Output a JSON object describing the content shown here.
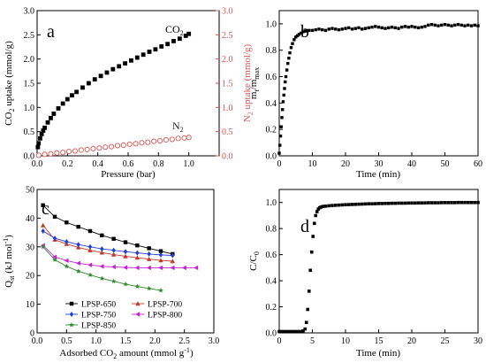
{
  "chart_data": [
    {
      "panel": "a",
      "type": "scatter",
      "xlabel": "Pressure (bar)",
      "ylabel": "CO2 uptake (mmol/g)",
      "y2label": "N2 uptake (mmol/g)",
      "xlim": [
        0,
        1.2
      ],
      "ylim": [
        0,
        3.0
      ],
      "y2lim": [
        0,
        3.0
      ],
      "x_ticks": [
        "0.0",
        "0.2",
        "0.4",
        "0.6",
        "0.8",
        "1.0"
      ],
      "y_ticks": [
        "0.0",
        "0.5",
        "1.0",
        "1.5",
        "2.0",
        "2.5",
        "3.0"
      ],
      "y2_ticks": [
        "0.0",
        "0.5",
        "1.0",
        "1.5",
        "2.0",
        "2.5",
        "3.0"
      ],
      "y2_color": "#d9534f",
      "series": [
        {
          "name": "CO2",
          "axis": "left",
          "color": "#000000",
          "marker": "square-filled",
          "x": [
            0.005,
            0.01,
            0.02,
            0.03,
            0.04,
            0.05,
            0.07,
            0.09,
            0.11,
            0.14,
            0.17,
            0.2,
            0.23,
            0.26,
            0.3,
            0.34,
            0.38,
            0.42,
            0.46,
            0.5,
            0.54,
            0.58,
            0.62,
            0.66,
            0.7,
            0.74,
            0.78,
            0.82,
            0.86,
            0.9,
            0.94,
            0.98,
            1.0
          ],
          "y": [
            0.18,
            0.26,
            0.36,
            0.45,
            0.52,
            0.58,
            0.69,
            0.78,
            0.87,
            0.98,
            1.08,
            1.17,
            1.25,
            1.32,
            1.41,
            1.5,
            1.58,
            1.65,
            1.72,
            1.79,
            1.85,
            1.91,
            1.97,
            2.03,
            2.09,
            2.15,
            2.2,
            2.26,
            2.31,
            2.37,
            2.42,
            2.48,
            2.52
          ]
        },
        {
          "name": "N2",
          "axis": "right",
          "color": "#d9534f",
          "marker": "circle-open",
          "x": [
            0.01,
            0.05,
            0.09,
            0.13,
            0.17,
            0.21,
            0.25,
            0.29,
            0.33,
            0.37,
            0.41,
            0.45,
            0.49,
            0.53,
            0.57,
            0.61,
            0.65,
            0.69,
            0.73,
            0.77,
            0.81,
            0.85,
            0.89,
            0.93,
            0.97,
            1.0
          ],
          "y": [
            0.01,
            0.03,
            0.04,
            0.06,
            0.07,
            0.09,
            0.1,
            0.12,
            0.13,
            0.15,
            0.16,
            0.18,
            0.19,
            0.21,
            0.22,
            0.24,
            0.25,
            0.27,
            0.28,
            0.3,
            0.31,
            0.33,
            0.34,
            0.36,
            0.37,
            0.38
          ]
        }
      ]
    },
    {
      "panel": "b",
      "type": "scatter",
      "xlabel": "Time (min)",
      "ylabel": "mt/mmax",
      "xlim": [
        0,
        60
      ],
      "ylim": [
        0,
        1.1
      ],
      "x_ticks": [
        "0",
        "10",
        "20",
        "30",
        "40",
        "50",
        "60"
      ],
      "y_ticks": [
        "0.0",
        "0.2",
        "0.4",
        "0.6",
        "0.8",
        "1.0"
      ],
      "series": [
        {
          "name": "",
          "color": "#000000",
          "marker": "square-filled",
          "x": [
            0.0,
            0.2,
            0.4,
            0.6,
            0.8,
            1.0,
            1.2,
            1.4,
            1.6,
            1.8,
            2.0,
            2.3,
            2.6,
            2.9,
            3.2,
            3.6,
            4.0,
            4.5,
            5.0,
            5.5,
            6.0,
            6.6,
            7.2,
            8.0,
            9.0,
            10.0,
            11.0,
            12.0,
            13.0,
            14.0,
            15.0,
            16.0,
            17.0,
            18.0,
            19.0,
            20.0,
            21.0,
            22.0,
            23.0,
            24.0,
            25.0,
            26.0,
            27.0,
            28.0,
            29.0,
            30.0,
            31.0,
            32.0,
            33.0,
            34.0,
            35.0,
            36.0,
            37.0,
            38.0,
            39.0,
            40.0,
            41.0,
            42.0,
            43.0,
            44.0,
            45.0,
            46.0,
            47.0,
            48.0,
            49.0,
            50.0,
            51.0,
            52.0,
            53.0,
            54.0,
            55.0,
            56.0,
            57.0,
            58.0,
            59.0,
            60.0
          ],
          "y": [
            0.02,
            0.08,
            0.15,
            0.22,
            0.29,
            0.35,
            0.41,
            0.46,
            0.51,
            0.56,
            0.6,
            0.65,
            0.7,
            0.74,
            0.78,
            0.82,
            0.85,
            0.88,
            0.9,
            0.91,
            0.92,
            0.93,
            0.94,
            0.945,
            0.95,
            0.95,
            0.955,
            0.96,
            0.955,
            0.95,
            0.96,
            0.965,
            0.96,
            0.955,
            0.96,
            0.965,
            0.97,
            0.96,
            0.965,
            0.97,
            0.96,
            0.965,
            0.97,
            0.975,
            0.98,
            0.975,
            0.97,
            0.965,
            0.97,
            0.975,
            0.97,
            0.965,
            0.975,
            0.98,
            0.975,
            0.98,
            0.975,
            0.97,
            0.975,
            0.98,
            0.99,
            0.995,
            0.99,
            0.985,
            0.99,
            0.995,
            0.99,
            0.985,
            0.99,
            0.995,
            0.99,
            0.985,
            0.99,
            0.985,
            0.99,
            0.985
          ]
        }
      ]
    },
    {
      "panel": "c",
      "type": "line",
      "xlabel": "Adsorbed CO2 amount (mmol g-1)",
      "ylabel": "Qst (kJ mol-1)",
      "xlim": [
        0,
        3.0
      ],
      "ylim": [
        0,
        50
      ],
      "x_ticks": [
        "0.0",
        "0.5",
        "1.0",
        "1.5",
        "2.0",
        "2.5",
        "3.0"
      ],
      "y_ticks": [
        "0",
        "10",
        "20",
        "30",
        "40",
        "50"
      ],
      "legend_position": "bottom-left",
      "series": [
        {
          "name": "LPSP-650",
          "color": "#000000",
          "marker": "square",
          "x": [
            0.1,
            0.3,
            0.5,
            0.7,
            0.9,
            1.1,
            1.3,
            1.5,
            1.7,
            1.9,
            2.1,
            2.3
          ],
          "y": [
            44.5,
            40.5,
            38.5,
            37.0,
            35.5,
            34.0,
            32.8,
            31.6,
            30.5,
            29.5,
            28.5,
            27.5
          ]
        },
        {
          "name": "LPSP-700",
          "color": "#c0392b",
          "marker": "triangle-up",
          "x": [
            0.1,
            0.3,
            0.5,
            0.7,
            0.9,
            1.1,
            1.3,
            1.5,
            1.7,
            1.9,
            2.1,
            2.3
          ],
          "y": [
            37.5,
            32.5,
            31.0,
            29.8,
            28.8,
            28.0,
            27.3,
            26.7,
            26.2,
            25.7,
            25.3,
            25.0
          ]
        },
        {
          "name": "LPSP-750",
          "color": "#1f3fd9",
          "marker": "diamond",
          "x": [
            0.1,
            0.3,
            0.5,
            0.7,
            0.9,
            1.1,
            1.3,
            1.5,
            1.7,
            1.9,
            2.1,
            2.3
          ],
          "y": [
            35.5,
            33.0,
            31.8,
            30.8,
            30.0,
            29.3,
            28.8,
            28.3,
            27.9,
            27.5,
            27.2,
            27.0
          ]
        },
        {
          "name": "LPSP-800",
          "color": "#c71fd6",
          "marker": "triangle-left",
          "x": [
            0.1,
            0.3,
            0.5,
            0.7,
            0.9,
            1.1,
            1.3,
            1.5,
            1.7,
            1.9,
            2.1,
            2.3,
            2.5,
            2.7
          ],
          "y": [
            30.5,
            26.5,
            25.2,
            24.3,
            23.7,
            23.2,
            23.0,
            22.8,
            22.7,
            22.7,
            22.7,
            22.7,
            22.7,
            22.7
          ]
        },
        {
          "name": "LPSP-850",
          "color": "#2e8b2e",
          "marker": "star",
          "x": [
            0.1,
            0.3,
            0.5,
            0.7,
            0.9,
            1.1,
            1.3,
            1.5,
            1.7,
            1.9,
            2.1
          ],
          "y": [
            30.0,
            25.5,
            23.2,
            21.5,
            20.2,
            19.0,
            18.0,
            17.0,
            16.2,
            15.5,
            14.8
          ]
        }
      ]
    },
    {
      "panel": "d",
      "type": "scatter",
      "xlabel": "Time (min)",
      "ylabel": "C/C0",
      "xlim": [
        0,
        30
      ],
      "ylim": [
        0,
        1.1
      ],
      "x_ticks": [
        "0",
        "5",
        "10",
        "15",
        "20",
        "25",
        "30"
      ],
      "y_ticks": [
        "0.0",
        "0.2",
        "0.4",
        "0.6",
        "0.8",
        "1.0"
      ],
      "series": [
        {
          "name": "",
          "color": "#000000",
          "marker": "square-filled",
          "x": [
            0.0,
            0.3,
            0.6,
            0.9,
            1.2,
            1.5,
            1.8,
            2.1,
            2.4,
            2.7,
            3.0,
            3.3,
            3.6,
            3.9,
            4.1,
            4.3,
            4.5,
            4.7,
            4.9,
            5.1,
            5.3,
            5.5,
            5.7,
            5.9,
            6.1,
            6.3,
            6.6,
            7.0,
            7.5,
            8.0,
            8.5,
            9.0,
            9.5,
            10.0,
            10.5,
            11.0,
            11.5,
            12.0,
            12.5,
            13.0,
            13.5,
            14.0,
            14.5,
            15.0,
            15.5,
            16.0,
            16.5,
            17.0,
            17.5,
            18.0,
            18.5,
            19.0,
            19.5,
            20.0,
            20.5,
            21.0,
            21.5,
            22.0,
            22.5,
            23.0,
            23.5,
            24.0,
            24.5,
            25.0,
            25.5,
            26.0,
            26.5,
            27.0,
            27.5,
            28.0,
            28.5,
            29.0,
            29.5,
            30.0
          ],
          "y": [
            0.01,
            0.01,
            0.01,
            0.01,
            0.01,
            0.01,
            0.01,
            0.01,
            0.01,
            0.01,
            0.01,
            0.01,
            0.015,
            0.03,
            0.08,
            0.18,
            0.32,
            0.48,
            0.62,
            0.74,
            0.84,
            0.9,
            0.93,
            0.95,
            0.96,
            0.965,
            0.97,
            0.972,
            0.975,
            0.977,
            0.979,
            0.98,
            0.982,
            0.983,
            0.984,
            0.985,
            0.986,
            0.987,
            0.988,
            0.989,
            0.99,
            0.99,
            0.991,
            0.992,
            0.992,
            0.993,
            0.993,
            0.994,
            0.994,
            0.995,
            0.995,
            0.995,
            0.996,
            0.996,
            0.996,
            0.997,
            0.997,
            0.997,
            0.998,
            0.998,
            0.998,
            0.998,
            0.999,
            0.999,
            0.999,
            0.999,
            0.999,
            1.0,
            1.0,
            1.0,
            1.0,
            1.0,
            1.0,
            1.0
          ]
        }
      ]
    }
  ],
  "labels": {
    "panel_a": "a",
    "panel_b": "b",
    "panel_c": "c",
    "panel_d": "d",
    "co2_annotation": "CO",
    "co2_annotation_sub": "2",
    "n2_annotation": "N",
    "n2_annotation_sub": "2",
    "a_xlabel": "Pressure (bar)",
    "a_ylabel_pre": "CO",
    "a_ylabel_sub": "2",
    "a_ylabel_post": " uptake (mmol/g)",
    "a_y2label_pre": "N",
    "a_y2label_sub": "2",
    "a_y2label_post": " uptake (mmol/g)",
    "b_xlabel": "Time (min)",
    "b_ylabel_pre": "m",
    "b_ylabel_sub1": "t",
    "b_ylabel_mid": "/m",
    "b_ylabel_sub2": "max",
    "c_xlabel_pre": "Adsorbed CO",
    "c_xlabel_sub": "2",
    "c_xlabel_post": " amount  (mmol g",
    "c_xlabel_sup": "-1",
    "c_xlabel_end": ")",
    "c_ylabel_pre": "Q",
    "c_ylabel_sub": "st",
    "c_ylabel_mid": " (kJ mol",
    "c_ylabel_sup": "-1",
    "c_ylabel_end": ")",
    "d_xlabel": "Time (min)",
    "d_ylabel_pre": "C/C",
    "d_ylabel_sub": "0"
  }
}
